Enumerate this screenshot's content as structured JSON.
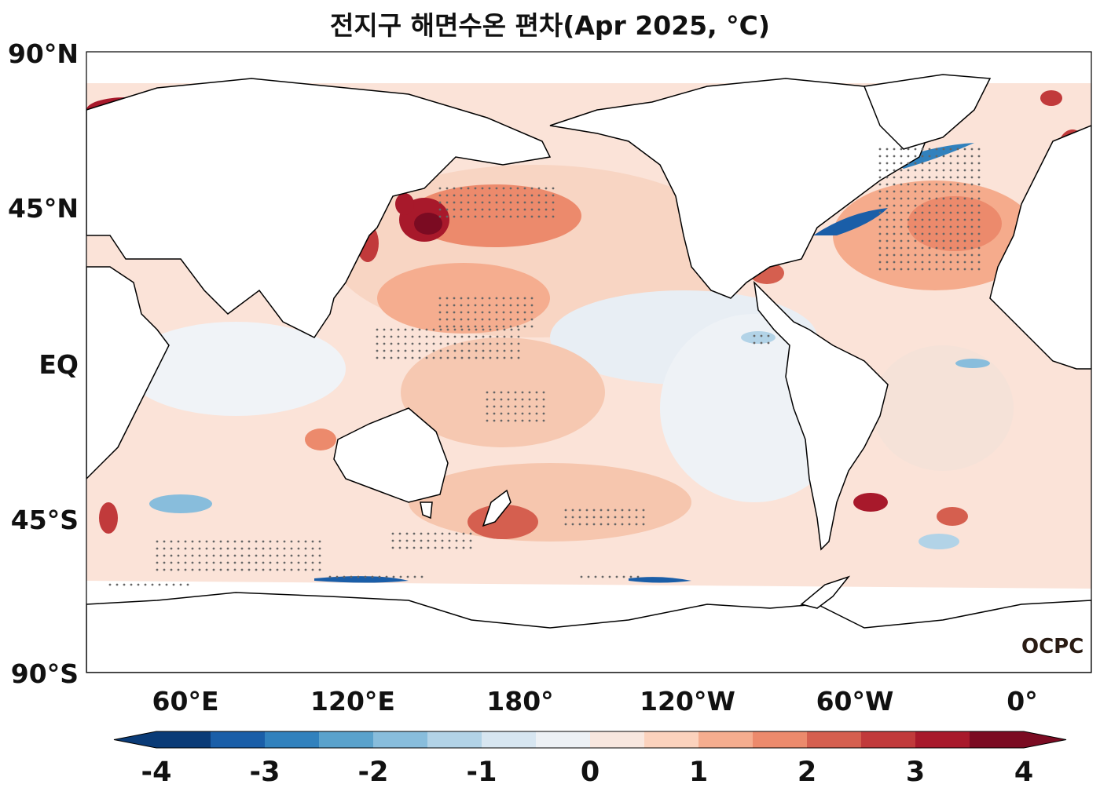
{
  "title": "전지구 해면수온 편차(Apr 2025, °C)",
  "lat_labels": [
    "90°N",
    "45°N",
    "EQ",
    "45°S",
    "90°S"
  ],
  "lon_labels": [
    "60°E",
    "120°E",
    "180°",
    "120°W",
    "60°W",
    "0°"
  ],
  "colorbar": {
    "tick_labels": [
      "-4",
      "-3",
      "-2",
      "-1",
      "0",
      "1",
      "2",
      "3",
      "4"
    ],
    "colors": [
      "#0a3b77",
      "#1a5ea8",
      "#3181bd",
      "#5aa2cc",
      "#88bddc",
      "#b2d3e7",
      "#d7e6f1",
      "#edf1f5",
      "#f8e7df",
      "#fbd2bd",
      "#f5ad8f",
      "#ec8a6c",
      "#d55f4f",
      "#c13a3b",
      "#a8192b",
      "#7b0b22"
    ],
    "extend": "both"
  },
  "logo": "OCPC",
  "map_data": {
    "projection": "PlateCarree, central longitude 200°",
    "variable": "sea surface temperature anomaly",
    "units": "°C",
    "range": [
      -4,
      4
    ],
    "level_step": 0.5,
    "stippling": "statistically significant anomalies",
    "notable_regions": [
      {
        "region": "Northwest Pacific / Japan coast",
        "anomaly": "strong positive (~+3 to +4)"
      },
      {
        "region": "North Atlantic subtropics",
        "anomaly": "positive (~+1 to +2)"
      },
      {
        "region": "Gulf Stream edge",
        "anomaly": "negative (~-2 to -3)"
      },
      {
        "region": "Southwest Atlantic near 40°S",
        "anomaly": "strong positive (~+3 to +4)"
      },
      {
        "region": "Tasman Sea / New Zealand",
        "anomaly": "positive (~+2)"
      },
      {
        "region": "Eastern equatorial Pacific",
        "anomaly": "weak negative (~-0.5 to -1)"
      },
      {
        "region": "Southern Ocean ice edge",
        "anomaly": "mixed, locally negative"
      }
    ]
  }
}
